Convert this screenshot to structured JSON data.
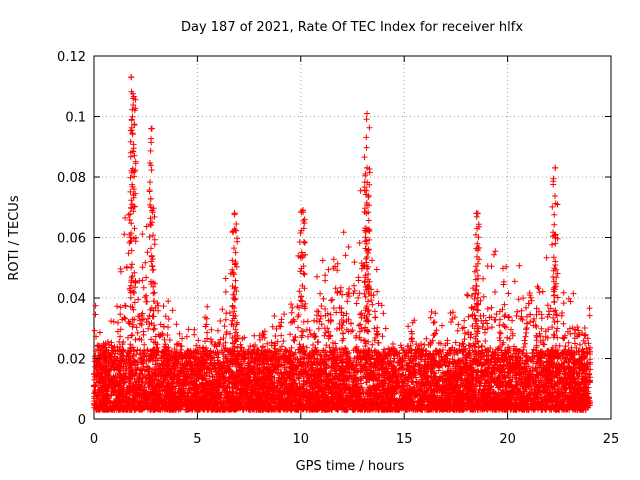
{
  "chart_data": {
    "type": "scatter",
    "title": "Day 187 of 2021, Rate Of TEC Index for receiver hlfx",
    "xlabel": "GPS time / hours",
    "ylabel": "ROTI / TECUs",
    "xlim": [
      0,
      25
    ],
    "ylim": [
      0,
      0.12
    ],
    "xticks": [
      0,
      5,
      10,
      15,
      20,
      25
    ],
    "yticks": [
      0,
      0.02,
      0.04,
      0.06,
      0.08,
      0.1,
      0.12
    ],
    "xtick_labels": [
      "0",
      "5",
      "10",
      "15",
      "20",
      "25"
    ],
    "ytick_labels": [
      "0",
      "0.02",
      "0.04",
      "0.06",
      "0.08",
      "0.1",
      "0.12"
    ],
    "grid": true,
    "marker": "+",
    "series_color": "#ff0000",
    "approx_envelope": {
      "description": "dense scatter, approximate upper envelope of ROTI vs time",
      "x": [
        0,
        0.5,
        1,
        1.5,
        1.8,
        2,
        2.5,
        2.8,
        3,
        3.5,
        4,
        4.5,
        5,
        5.5,
        6,
        6.8,
        7,
        8,
        8.8,
        9,
        9.5,
        10,
        10.5,
        11,
        11.5,
        12,
        12.5,
        13,
        13.2,
        13.5,
        14,
        14.5,
        15,
        15.5,
        16,
        16.5,
        17,
        17.5,
        18,
        18.5,
        19,
        19.5,
        20,
        20.5,
        21,
        21.5,
        22,
        22.3,
        22.5,
        23,
        23.5,
        24
      ],
      "y": [
        0.04,
        0.03,
        0.035,
        0.066,
        0.113,
        0.106,
        0.08,
        0.096,
        0.06,
        0.04,
        0.035,
        0.03,
        0.032,
        0.038,
        0.03,
        0.068,
        0.03,
        0.028,
        0.037,
        0.035,
        0.04,
        0.069,
        0.04,
        0.061,
        0.05,
        0.065,
        0.07,
        0.083,
        0.101,
        0.06,
        0.035,
        0.03,
        0.03,
        0.033,
        0.03,
        0.04,
        0.035,
        0.036,
        0.045,
        0.068,
        0.06,
        0.055,
        0.05,
        0.05,
        0.058,
        0.048,
        0.058,
        0.083,
        0.045,
        0.044,
        0.04,
        0.038
      ]
    },
    "peaks": [
      {
        "x": 1.8,
        "y": 0.113
      },
      {
        "x": 1.9,
        "y": 0.106
      },
      {
        "x": 2.8,
        "y": 0.096
      },
      {
        "x": 6.8,
        "y": 0.068
      },
      {
        "x": 10.1,
        "y": 0.069
      },
      {
        "x": 13.2,
        "y": 0.101
      },
      {
        "x": 13.2,
        "y": 0.083
      },
      {
        "x": 18.5,
        "y": 0.068
      },
      {
        "x": 22.3,
        "y": 0.083
      }
    ]
  }
}
